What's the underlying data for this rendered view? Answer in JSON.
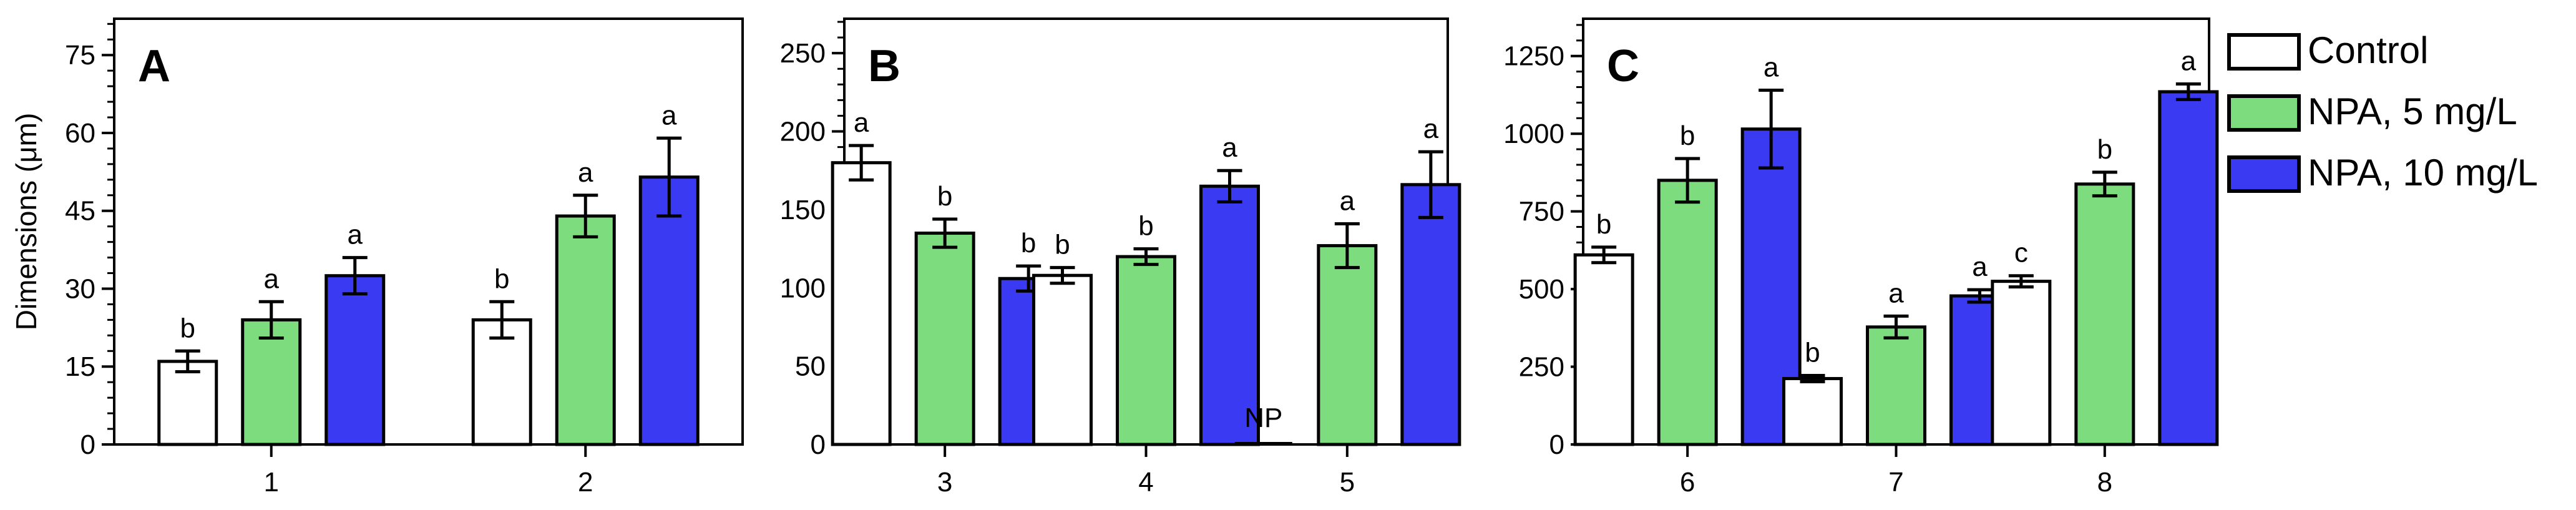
{
  "ylabel": "Dimensions (μm)",
  "legend": {
    "placement": "right",
    "entries": [
      {
        "label": "Control",
        "color": "#ffffff"
      },
      {
        "label": "NPA, 5 mg/L",
        "color": "#7ddc7d"
      },
      {
        "label": "NPA, 10 mg/L",
        "color": "#3a3af2"
      }
    ]
  },
  "chart_data": [
    {
      "type": "bar",
      "panel_label": "A",
      "categories": [
        "1",
        "2"
      ],
      "ylim": [
        0,
        82
      ],
      "yticks": [
        0,
        15,
        30,
        45,
        60,
        75
      ],
      "ytick_labels": [
        "0",
        "15",
        "30",
        "45",
        "60",
        "75"
      ],
      "grid": false,
      "series": [
        {
          "name": "Control",
          "values": [
            16,
            24
          ],
          "errors": [
            2,
            3.5
          ],
          "letters": [
            "b",
            "b"
          ]
        },
        {
          "name": "NPA, 5 mg/L",
          "values": [
            24,
            44
          ],
          "errors": [
            3.5,
            4
          ],
          "letters": [
            "a",
            "a"
          ]
        },
        {
          "name": "NPA, 10 mg/L",
          "values": [
            32.5,
            51.5
          ],
          "errors": [
            3.5,
            7.5
          ],
          "letters": [
            "a",
            "a"
          ]
        }
      ]
    },
    {
      "type": "bar",
      "panel_label": "B",
      "categories": [
        "3",
        "4",
        "5"
      ],
      "ylim": [
        0,
        272
      ],
      "yticks": [
        0,
        50,
        100,
        150,
        200,
        250
      ],
      "ytick_labels": [
        "0",
        "50",
        "100",
        "150",
        "200",
        "250"
      ],
      "grid": false,
      "series": [
        {
          "name": "Control",
          "values": [
            180,
            108,
            0
          ],
          "errors": [
            11,
            5,
            0
          ],
          "letters": [
            "a",
            "b",
            "NP"
          ]
        },
        {
          "name": "NPA, 5 mg/L",
          "values": [
            135,
            120,
            127
          ],
          "errors": [
            9,
            5,
            14
          ],
          "letters": [
            "b",
            "b",
            "a"
          ]
        },
        {
          "name": "NPA, 10 mg/L",
          "values": [
            106,
            165,
            166
          ],
          "errors": [
            8,
            10,
            21
          ],
          "letters": [
            "b",
            "a",
            "a"
          ]
        }
      ]
    },
    {
      "type": "bar",
      "panel_label": "C",
      "categories": [
        "6",
        "7",
        "8"
      ],
      "ylim": [
        0,
        1370
      ],
      "yticks": [
        0,
        250,
        500,
        750,
        1000,
        1250
      ],
      "ytick_labels": [
        "0",
        "250",
        "500",
        "750",
        "1000",
        "1250"
      ],
      "grid": false,
      "series": [
        {
          "name": "Control",
          "values": [
            610,
            212,
            525
          ],
          "errors": [
            25,
            10,
            18
          ],
          "letters": [
            "b",
            "b",
            "c"
          ]
        },
        {
          "name": "NPA, 5 mg/L",
          "values": [
            850,
            378,
            838
          ],
          "errors": [
            70,
            35,
            38
          ],
          "letters": [
            "b",
            "a",
            "b"
          ]
        },
        {
          "name": "NPA, 10 mg/L",
          "values": [
            1015,
            478,
            1135
          ],
          "errors": [
            125,
            20,
            25
          ],
          "letters": [
            "a",
            "a",
            "a"
          ]
        }
      ]
    }
  ]
}
